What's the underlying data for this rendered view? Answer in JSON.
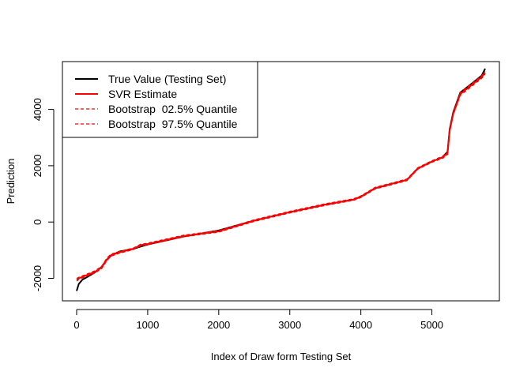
{
  "chart_data": {
    "type": "line",
    "title": "",
    "xlabel": "Index of Draw form Testing Set",
    "ylabel": "Prediction",
    "xlim": [
      -200,
      5950
    ],
    "ylim": [
      -2800,
      5700
    ],
    "xticks": [
      0,
      1000,
      2000,
      3000,
      4000,
      5000
    ],
    "yticks": [
      -2000,
      0,
      2000,
      4000
    ],
    "grid": false,
    "legend_position": "top-left",
    "series": [
      {
        "name": "True Value (Testing Set)",
        "color": "#000000",
        "style": "solid",
        "x": [
          0,
          30,
          80,
          150,
          250,
          350,
          420,
          480,
          600,
          800,
          1000,
          1500,
          2000,
          2500,
          3000,
          3500,
          3900,
          4000,
          4200,
          4500,
          4650,
          4800,
          5000,
          5150,
          5220,
          5250,
          5300,
          5400,
          5500,
          5600,
          5700,
          5750
        ],
        "values": [
          -2450,
          -2200,
          -2050,
          -1950,
          -1800,
          -1600,
          -1350,
          -1200,
          -1050,
          -950,
          -800,
          -520,
          -300,
          50,
          350,
          620,
          800,
          900,
          1200,
          1400,
          1500,
          1900,
          2150,
          2300,
          2500,
          3300,
          3900,
          4600,
          4800,
          5000,
          5200,
          5450
        ]
      },
      {
        "name": "SVR Estimate",
        "color": "#ff0000",
        "style": "solid",
        "x": [
          0,
          30,
          80,
          150,
          250,
          350,
          420,
          480,
          600,
          800,
          900,
          1000,
          1500,
          2000,
          2500,
          3000,
          3500,
          3900,
          4000,
          4200,
          4500,
          4650,
          4800,
          5000,
          5150,
          5220,
          5250,
          5300,
          5400,
          5500,
          5600,
          5700,
          5750
        ],
        "values": [
          -2050,
          -2000,
          -1950,
          -1880,
          -1780,
          -1620,
          -1350,
          -1180,
          -1080,
          -950,
          -820,
          -780,
          -500,
          -330,
          50,
          350,
          620,
          800,
          900,
          1200,
          1400,
          1500,
          1900,
          2150,
          2300,
          2450,
          3250,
          3850,
          4550,
          4750,
          4950,
          5150,
          5300
        ]
      },
      {
        "name": "Bootstrap  02.5% Quantile",
        "color": "#ff0000",
        "style": "dashed",
        "x": [
          0,
          30,
          80,
          150,
          250,
          350,
          420,
          480,
          600,
          800,
          900,
          1000,
          1500,
          2000,
          2500,
          3000,
          3500,
          3900,
          4000,
          4200,
          4500,
          4650,
          4800,
          5000,
          5150,
          5220,
          5250,
          5300,
          5400,
          5500,
          5600,
          5700,
          5750
        ],
        "values": [
          -2100,
          -2040,
          -1990,
          -1920,
          -1820,
          -1660,
          -1400,
          -1220,
          -1110,
          -980,
          -850,
          -810,
          -530,
          -360,
          20,
          320,
          590,
          770,
          870,
          1170,
          1370,
          1470,
          1870,
          2120,
          2260,
          2400,
          3200,
          3800,
          4500,
          4700,
          4900,
          5100,
          5250
        ]
      },
      {
        "name": "Bootstrap  97.5% Quantile",
        "color": "#ff0000",
        "style": "dashed",
        "x": [
          0,
          30,
          80,
          150,
          250,
          350,
          420,
          480,
          600,
          800,
          900,
          1000,
          1500,
          2000,
          2500,
          3000,
          3500,
          3900,
          4000,
          4200,
          4500,
          4650,
          4800,
          5000,
          5150,
          5220,
          5250,
          5300,
          5400,
          5500,
          5600,
          5700,
          5750
        ],
        "values": [
          -2000,
          -1960,
          -1910,
          -1840,
          -1740,
          -1580,
          -1300,
          -1140,
          -1050,
          -920,
          -790,
          -750,
          -470,
          -300,
          80,
          380,
          650,
          830,
          930,
          1230,
          1430,
          1530,
          1930,
          2180,
          2340,
          2500,
          3300,
          3900,
          4600,
          4800,
          5000,
          5200,
          5350
        ]
      }
    ]
  }
}
